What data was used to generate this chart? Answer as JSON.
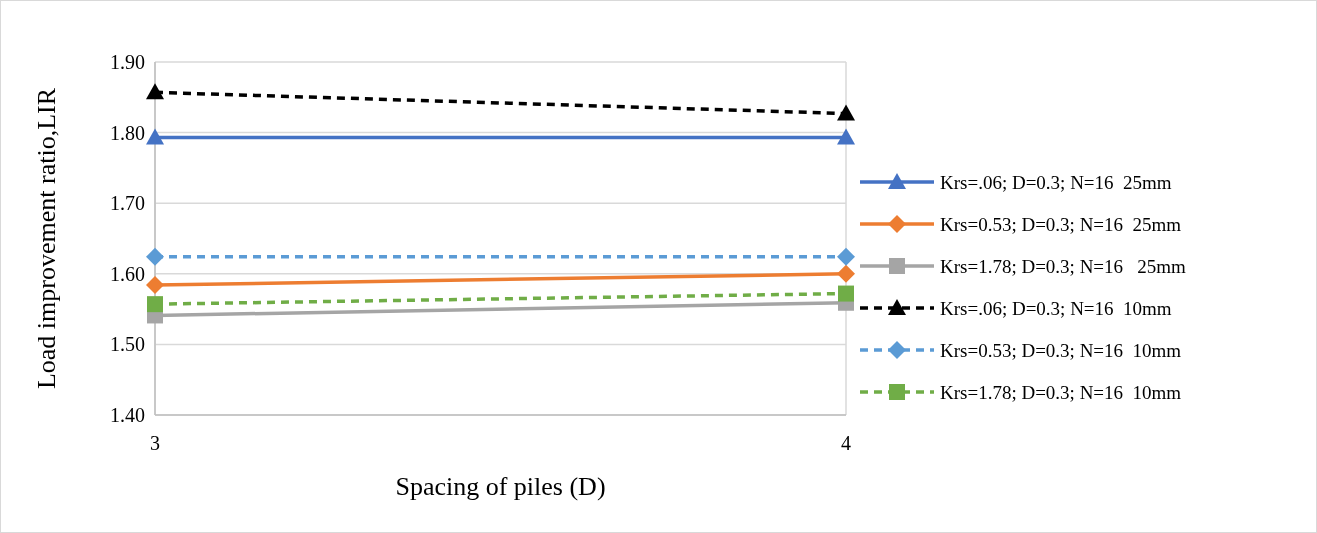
{
  "chart_data": {
    "type": "line",
    "xlabel": "Spacing of piles (D)",
    "ylabel": "Load improvement ratio,LIR",
    "x": [
      3,
      4
    ],
    "xlim": [
      3,
      4
    ],
    "xticks": [
      3,
      4
    ],
    "ylim": [
      1.4,
      1.9
    ],
    "yticks": [
      {
        "value": 1.4,
        "label": "1.40"
      },
      {
        "value": 1.5,
        "label": "1.50"
      },
      {
        "value": 1.6,
        "label": "1.60"
      },
      {
        "value": 1.7,
        "label": "1.70"
      },
      {
        "value": 1.8,
        "label": "1.80"
      },
      {
        "value": 1.9,
        "label": "1.90"
      }
    ],
    "grid": true,
    "legend": "right",
    "series": [
      {
        "name": "Krs=.06; D=0.3; N=16  25mm",
        "color": "#4472c4",
        "values": [
          1.793,
          1.793
        ],
        "marker": "triangle",
        "line_style": "solid"
      },
      {
        "name": "Krs=0.53; D=0.3; N=16  25mm",
        "color": "#ed7d31",
        "values": [
          1.584,
          1.6
        ],
        "marker": "diamond",
        "line_style": "solid"
      },
      {
        "name": "Krs=1.78; D=0.3; N=16   25mm",
        "color": "#a5a5a5",
        "values": [
          1.541,
          1.559
        ],
        "marker": "square",
        "line_style": "solid"
      },
      {
        "name": "Krs=.06; D=0.3; N=16  10mm",
        "color": "#000000",
        "values": [
          1.857,
          1.827
        ],
        "marker": "triangle",
        "line_style": "dashed"
      },
      {
        "name": "Krs=0.53; D=0.3; N=16  10mm",
        "color": "#5b9bd5",
        "values": [
          1.624,
          1.624
        ],
        "marker": "diamond",
        "line_style": "dashed"
      },
      {
        "name": "Krs=1.78; D=0.3; N=16  10mm",
        "color": "#70ad47",
        "values": [
          1.557,
          1.572
        ],
        "marker": "square",
        "line_style": "dashed"
      }
    ]
  }
}
